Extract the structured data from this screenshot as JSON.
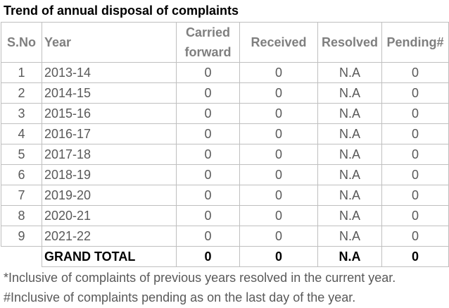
{
  "title": "Trend of annual disposal of complaints",
  "headers": {
    "sno": "S.No",
    "year": "Year",
    "carried_forward": "Carried forward",
    "received": "Received",
    "resolved": "Resolved",
    "pending": "Pending#"
  },
  "rows": [
    {
      "sno": "1",
      "year": "2013-14",
      "carried_forward": "0",
      "received": "0",
      "resolved": "N.A",
      "pending": "0"
    },
    {
      "sno": "2",
      "year": "2014-15",
      "carried_forward": "0",
      "received": "0",
      "resolved": "N.A",
      "pending": "0"
    },
    {
      "sno": "3",
      "year": "2015-16",
      "carried_forward": "0",
      "received": "0",
      "resolved": "N.A",
      "pending": "0"
    },
    {
      "sno": "4",
      "year": "2016-17",
      "carried_forward": "0",
      "received": "0",
      "resolved": "N.A",
      "pending": "0"
    },
    {
      "sno": "5",
      "year": "2017-18",
      "carried_forward": "0",
      "received": "0",
      "resolved": "N.A",
      "pending": "0"
    },
    {
      "sno": "6",
      "year": "2018-19",
      "carried_forward": "0",
      "received": "0",
      "resolved": "N.A",
      "pending": "0"
    },
    {
      "sno": "7",
      "year": "2019-20",
      "carried_forward": "0",
      "received": "0",
      "resolved": "N.A",
      "pending": "0"
    },
    {
      "sno": "8",
      "year": "2020-21",
      "carried_forward": "0",
      "received": "0",
      "resolved": "N.A",
      "pending": "0"
    },
    {
      "sno": "9",
      "year": "2021-22",
      "carried_forward": "0",
      "received": "0",
      "resolved": "N.A",
      "pending": "0"
    }
  ],
  "total": {
    "label": "GRAND TOTAL",
    "carried_forward": "0",
    "received": "0",
    "resolved": "N.A",
    "pending": "0"
  },
  "notes": {
    "resolved_note": "*Inclusive of complaints of previous years resolved in the current year.",
    "pending_note": "#Inclusive of complaints pending as on the last day of the year."
  },
  "colors": {
    "header_text": "#7f7f7f",
    "body_text": "#595959",
    "total_text": "#000000",
    "grid": "#bfbfbf"
  }
}
